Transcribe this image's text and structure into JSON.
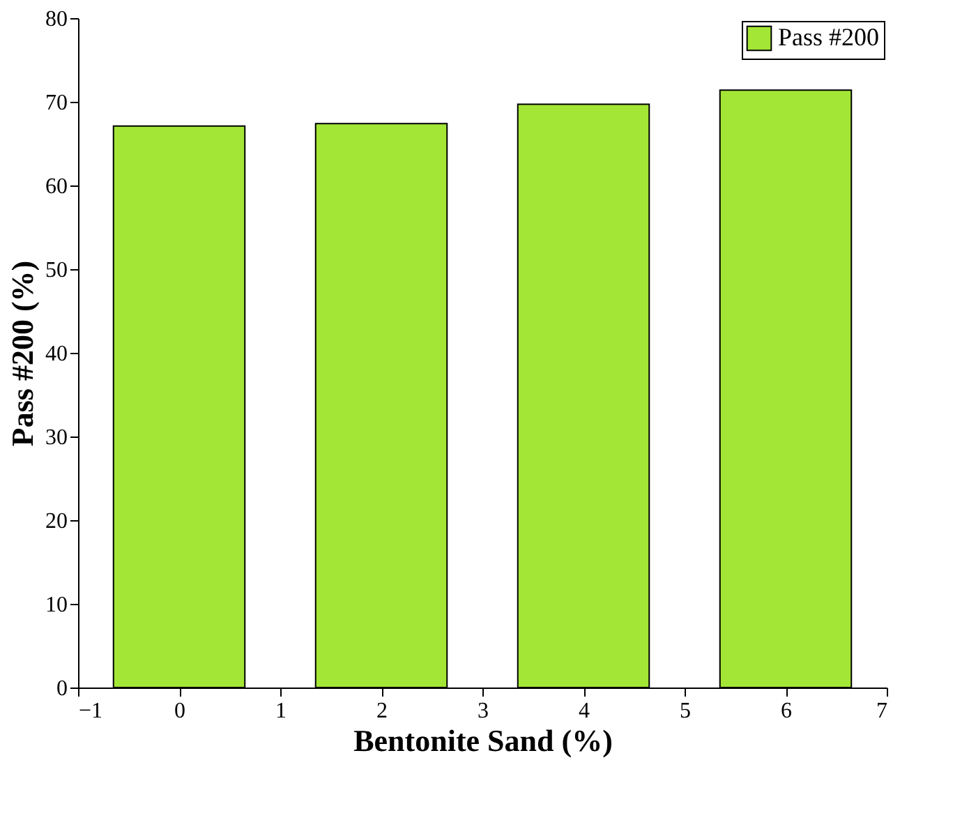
{
  "chart_data": {
    "type": "bar",
    "xlabel": "Bentonite Sand (%)",
    "ylabel": "Pass #200 (%)",
    "x": [
      0,
      2,
      4,
      6
    ],
    "series": [
      {
        "name": "Pass #200",
        "color": "#a3e635",
        "values": [
          67.1,
          67.4,
          69.7,
          71.4
        ]
      }
    ],
    "xlim": [
      -1,
      7
    ],
    "xticks": [
      -1,
      0,
      1,
      2,
      3,
      4,
      5,
      6,
      7
    ],
    "ylim": [
      0,
      80
    ],
    "yticks": [
      0,
      10,
      20,
      30,
      40,
      50,
      60,
      70,
      80
    ],
    "grid": false,
    "legend": "top right"
  }
}
